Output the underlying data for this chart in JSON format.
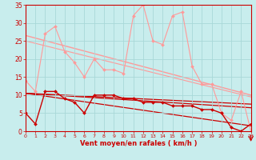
{
  "xlabel": "Vent moyen/en rafales ( km/h )",
  "xlim": [
    0,
    23
  ],
  "ylim": [
    0,
    35
  ],
  "yticks": [
    0,
    5,
    10,
    15,
    20,
    25,
    30,
    35
  ],
  "xticks": [
    0,
    1,
    2,
    3,
    4,
    5,
    6,
    7,
    8,
    9,
    10,
    11,
    12,
    13,
    14,
    15,
    16,
    17,
    18,
    19,
    20,
    21,
    22,
    23
  ],
  "background_color": "#c8eded",
  "grid_color": "#a8d8d8",
  "series": [
    {
      "label": "rafales_light",
      "x": [
        0,
        1,
        2,
        3,
        4,
        5,
        6,
        7,
        8,
        9,
        10,
        11,
        12,
        13,
        14,
        15,
        16,
        17,
        18,
        19,
        20,
        21,
        22,
        23
      ],
      "y": [
        14,
        11,
        27,
        29,
        22,
        19,
        15,
        20,
        17,
        17,
        16,
        32,
        35,
        25,
        24,
        32,
        33,
        18,
        13,
        13,
        5,
        3,
        11,
        0
      ],
      "color": "#ff9999",
      "linewidth": 0.8,
      "marker": "D",
      "markersize": 2.0,
      "zorder": 2
    },
    {
      "label": "moyen_dark",
      "x": [
        0,
        1,
        2,
        3,
        4,
        5,
        6,
        7,
        8,
        9,
        10,
        11,
        12,
        13,
        14,
        15,
        16,
        17,
        18,
        19,
        20,
        21,
        22,
        23
      ],
      "y": [
        5,
        2,
        11,
        11,
        9,
        8,
        5,
        10,
        10,
        10,
        9,
        9,
        8,
        8,
        8,
        7,
        7,
        7,
        6,
        6,
        5,
        1,
        0,
        2
      ],
      "color": "#cc0000",
      "linewidth": 1.0,
      "marker": "D",
      "markersize": 2.0,
      "zorder": 3
    },
    {
      "label": "trend_light1",
      "x": [
        0,
        23
      ],
      "y": [
        26.5,
        10
      ],
      "color": "#ff9999",
      "linewidth": 1.0,
      "marker": null,
      "zorder": 1
    },
    {
      "label": "trend_light2",
      "x": [
        0,
        23
      ],
      "y": [
        25,
        9.5
      ],
      "color": "#ff9999",
      "linewidth": 0.8,
      "marker": null,
      "zorder": 1
    },
    {
      "label": "trend_dark1",
      "x": [
        0,
        23
      ],
      "y": [
        10.5,
        7.5
      ],
      "color": "#cc0000",
      "linewidth": 0.9,
      "marker": null,
      "zorder": 1
    },
    {
      "label": "trend_dark2",
      "x": [
        0,
        23
      ],
      "y": [
        10.5,
        6.5
      ],
      "color": "#cc0000",
      "linewidth": 0.9,
      "marker": null,
      "zorder": 1
    },
    {
      "label": "trend_dark3",
      "x": [
        0,
        23
      ],
      "y": [
        10.5,
        1.5
      ],
      "color": "#cc0000",
      "linewidth": 0.9,
      "marker": null,
      "zorder": 1
    }
  ]
}
